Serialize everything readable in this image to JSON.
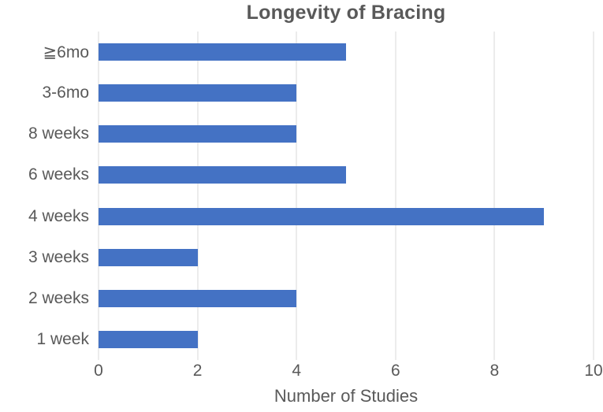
{
  "chart_data": {
    "type": "bar",
    "orientation": "horizontal",
    "title": "Longevity of Bracing",
    "xlabel": "Number of Studies",
    "ylabel": "",
    "categories": [
      "≧6mo",
      "3-6mo",
      "8 weeks",
      "6 weeks",
      "4 weeks",
      "3 weeks",
      "2 weeks",
      "1 week"
    ],
    "values": [
      5,
      4,
      4,
      5,
      9,
      2,
      4,
      2
    ],
    "xlim": [
      0,
      10
    ],
    "xticks": [
      0,
      2,
      4,
      6,
      8,
      10
    ],
    "grid": true,
    "legend_position": "none",
    "colors": {
      "bar": "#4472C4",
      "gridline": "#D9D9D9",
      "text": "#595959",
      "background": "#FFFFFF"
    }
  }
}
